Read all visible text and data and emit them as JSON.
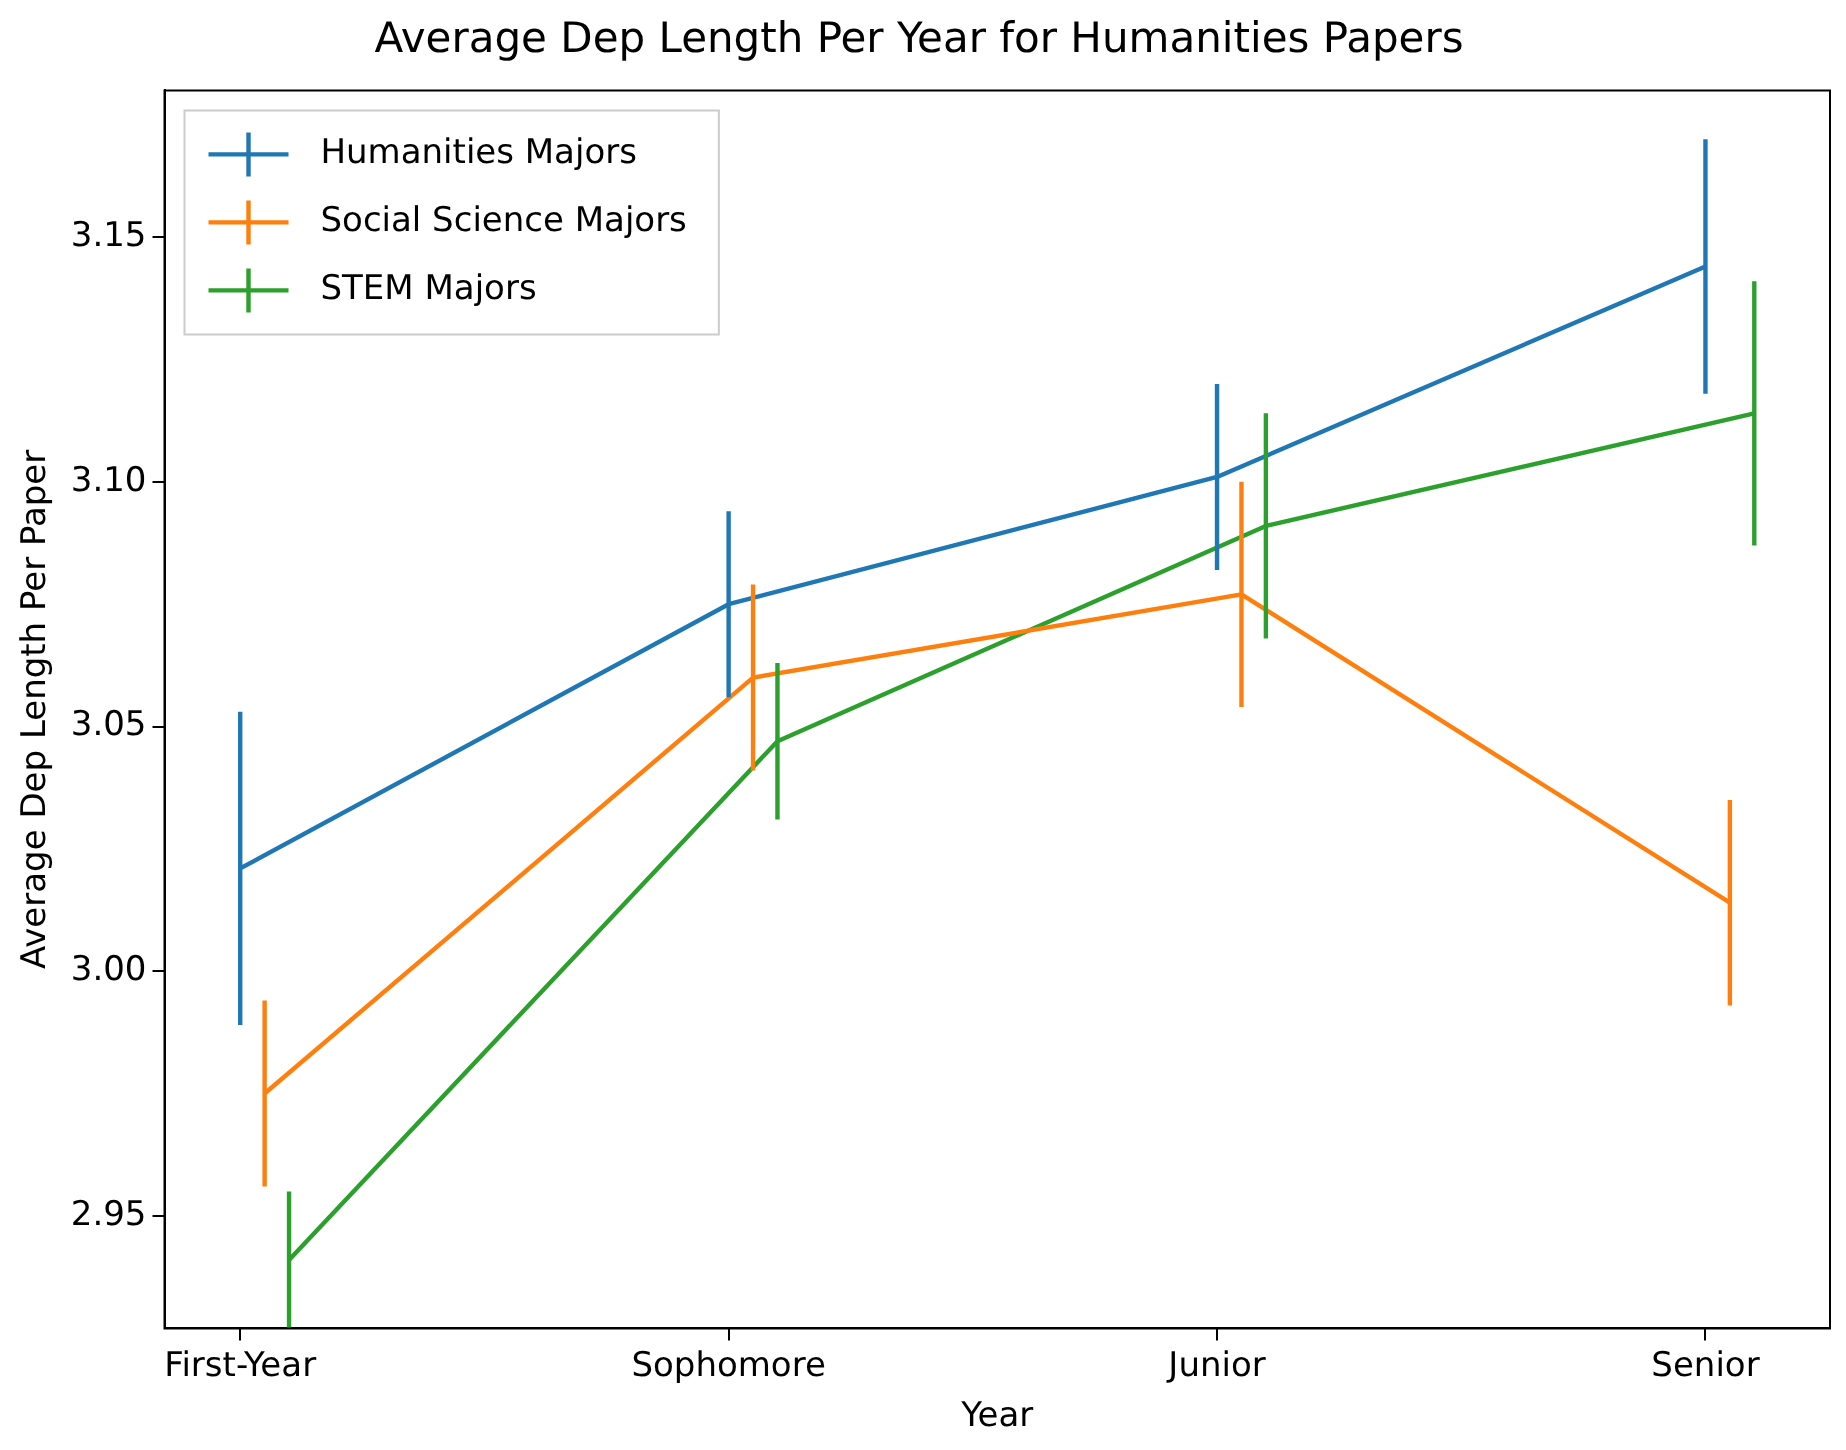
{
  "chart_data": {
    "type": "line",
    "title": "Average Dep Length Per Year for Humanities Papers",
    "xlabel": "Year",
    "ylabel": "Average Dep Length Per Paper",
    "categories": [
      "First-Year",
      "Sophomore",
      "Junior",
      "Senior"
    ],
    "ylim": [
      2.927,
      3.18
    ],
    "yticks": [
      2.95,
      {
        "value": 3.0,
        "label": "3.00"
      },
      3.05,
      {
        "value": 3.1,
        "label": "3.10"
      },
      3.15
    ],
    "series": [
      {
        "name": "Humanities Majors",
        "color": "#1f77b4",
        "values": [
          3.021,
          3.075,
          3.101,
          3.144
        ],
        "errors": [
          0.032,
          0.019,
          0.019,
          0.026
        ]
      },
      {
        "name": "Social Science Majors",
        "color": "#ff7f0e",
        "values": [
          2.975,
          3.06,
          3.077,
          3.014
        ],
        "errors": [
          0.019,
          0.019,
          0.023,
          0.021
        ]
      },
      {
        "name": "STEM Majors",
        "color": "#2ca02c",
        "values": [
          2.941,
          3.047,
          3.091,
          3.114
        ],
        "errors": [
          0.014,
          0.016,
          0.023,
          0.027
        ]
      }
    ],
    "grid": false,
    "legend": "top left",
    "marker": "none",
    "line_style": "solid"
  }
}
